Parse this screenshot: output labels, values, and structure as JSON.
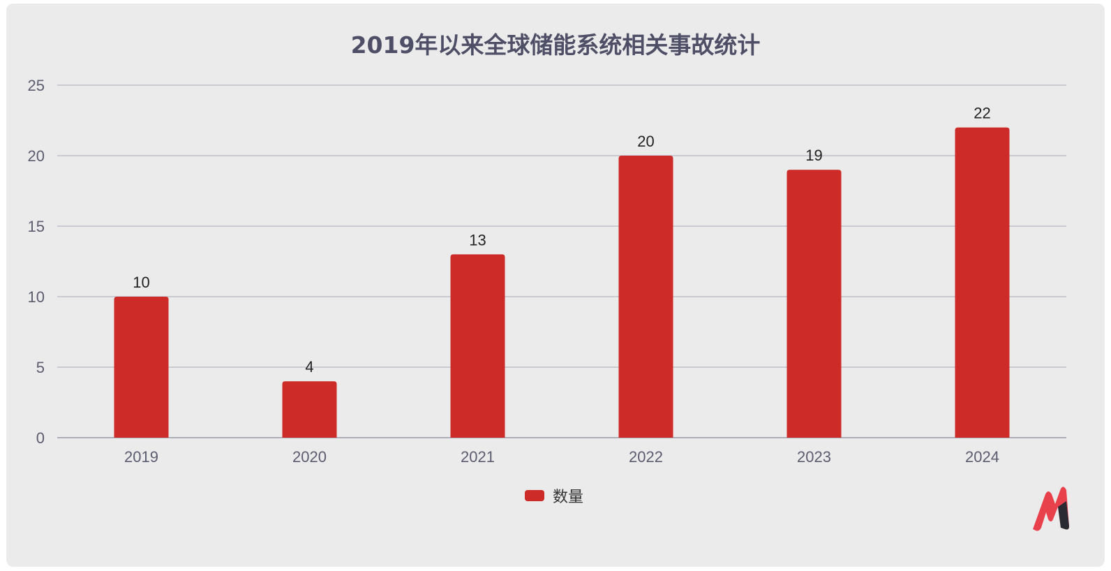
{
  "chart_data": {
    "type": "bar",
    "title": "2019年以来全球储能系统相关事故统计",
    "categories": [
      "2019",
      "2020",
      "2021",
      "2022",
      "2023",
      "2024"
    ],
    "series": [
      {
        "name": "数量",
        "values": [
          10,
          4,
          13,
          20,
          19,
          22
        ],
        "color": "#cc2b28"
      }
    ],
    "yticks": [
      "0",
      "5",
      "10",
      "15",
      "20",
      "25"
    ],
    "ylim": [
      0,
      25
    ],
    "grid": true,
    "legend": "bottom-center",
    "data_labels": true
  },
  "logo": {
    "name": "m-logo-icon",
    "colors": [
      "#e8414c",
      "#2a2a33"
    ]
  }
}
